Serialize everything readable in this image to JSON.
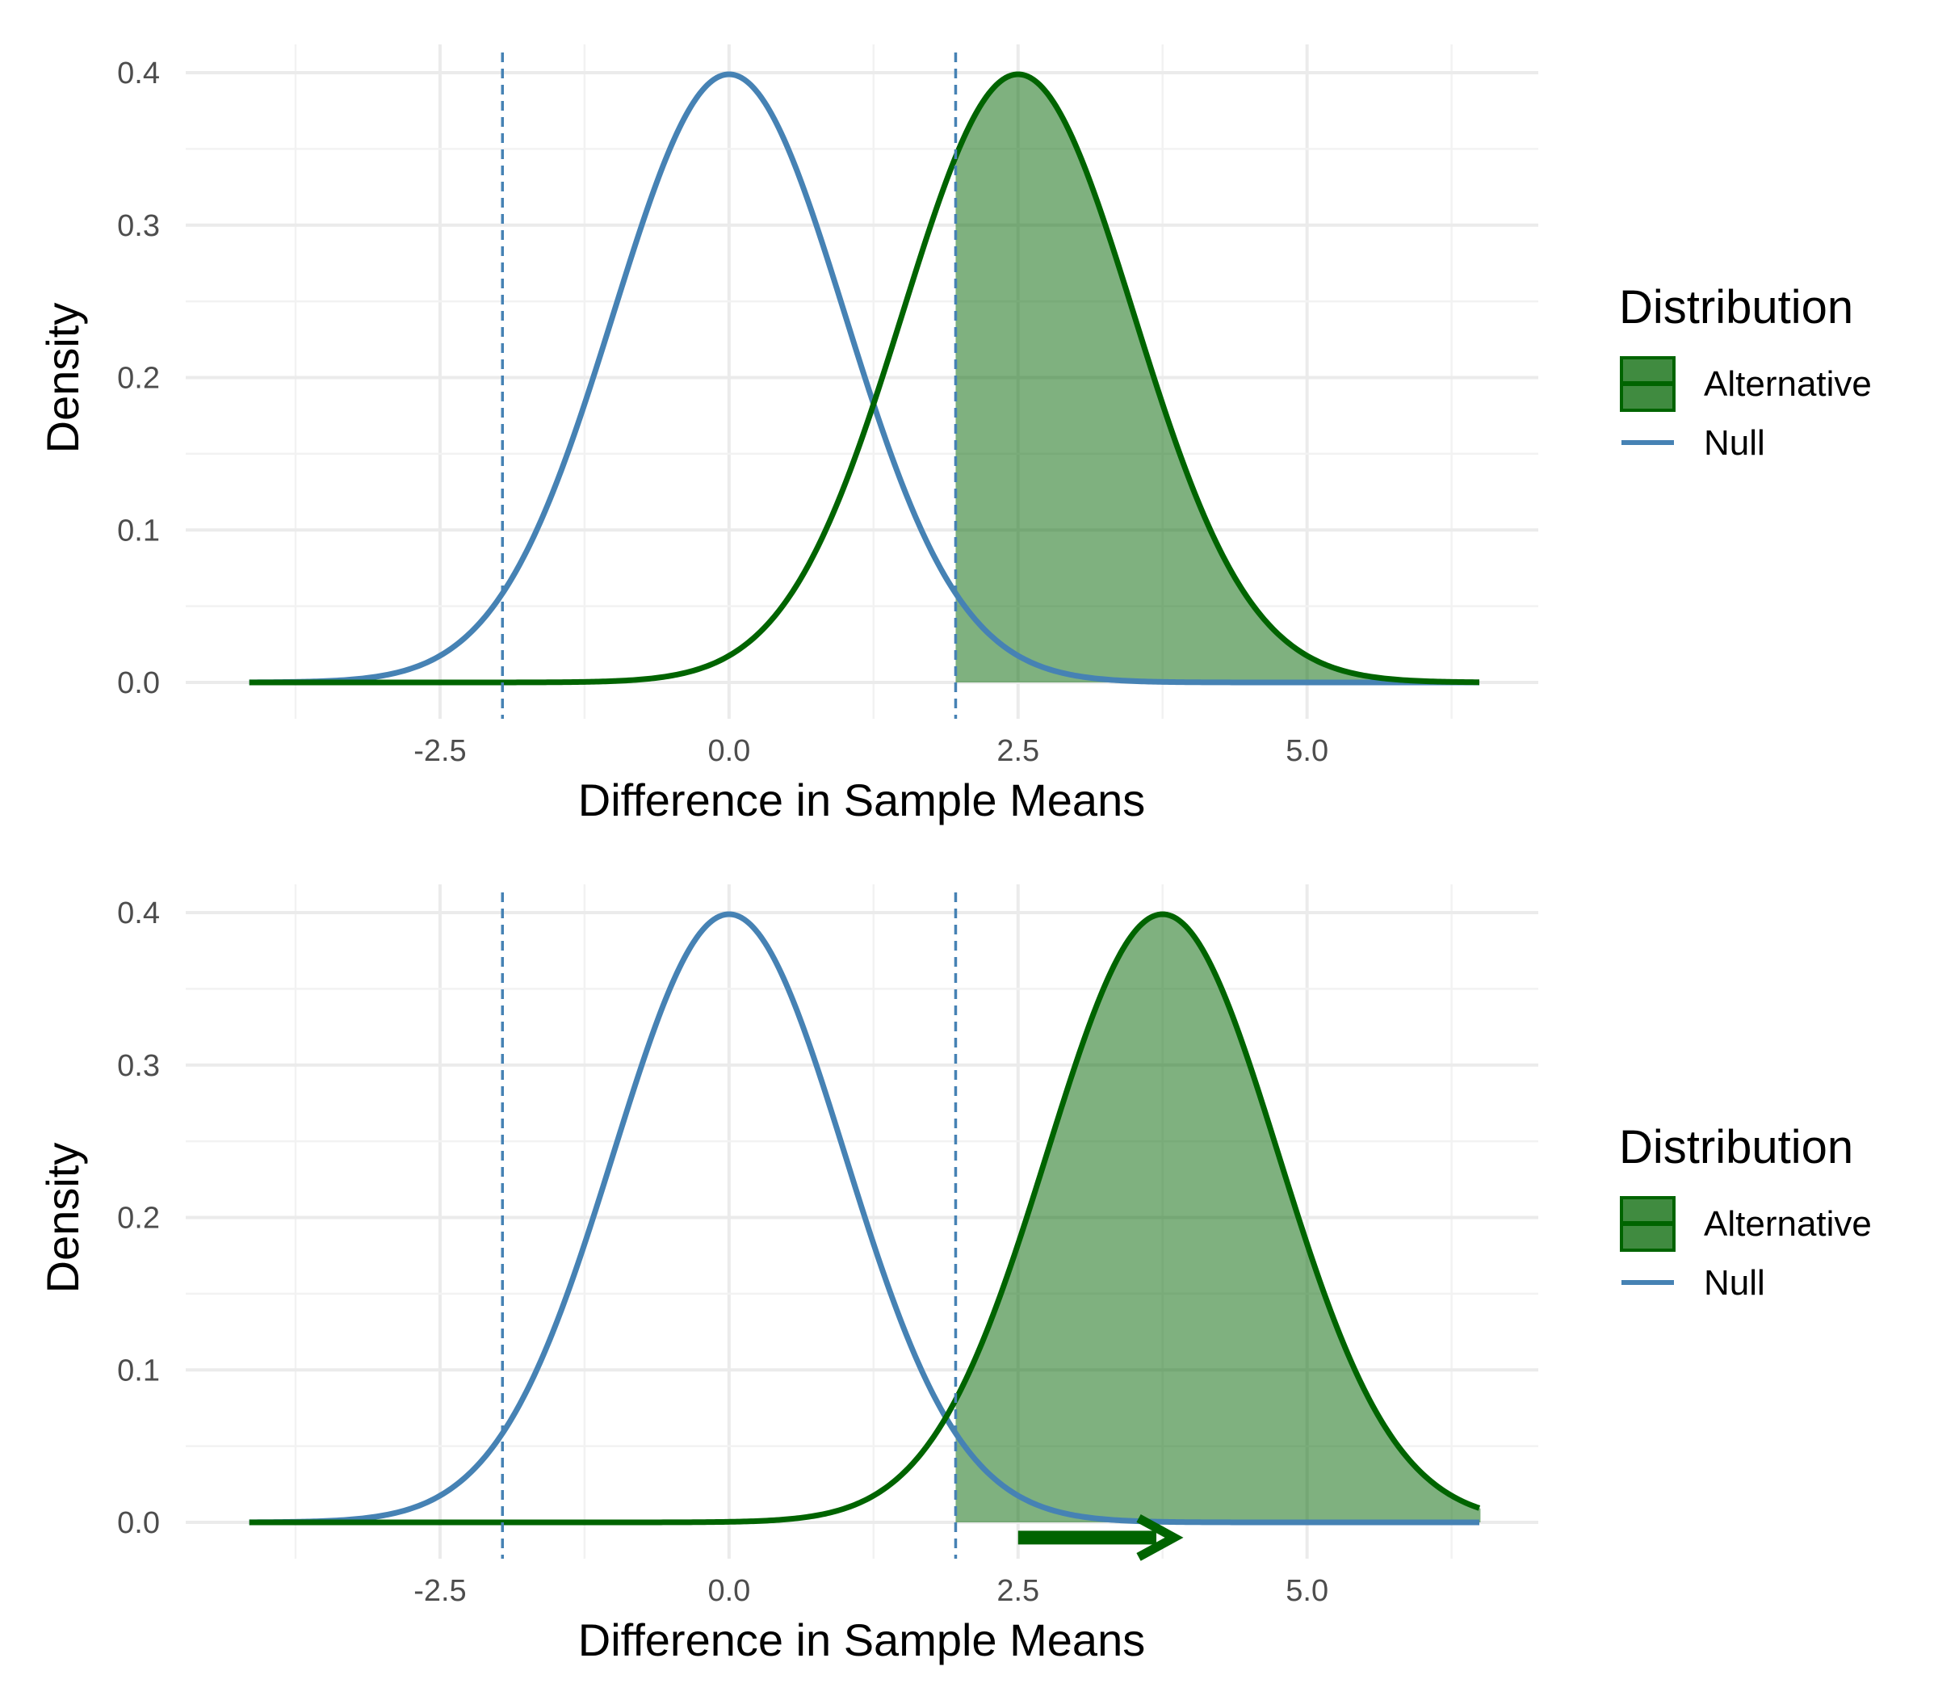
{
  "colors": {
    "null": "#4682b4",
    "alternative": "#006400",
    "fill": "#006400",
    "grid_major": "#ebebeb",
    "grid_minor": "#f2f2f2",
    "tick_text": "#4d4d4d"
  },
  "chart_data": [
    {
      "type": "line",
      "xlabel": "Difference in Sample Means",
      "ylabel": "Density",
      "xlim": [
        -4.15,
        6.5
      ],
      "ylim": [
        0,
        0.4
      ],
      "x_ticks": [
        -2.5,
        0.0,
        2.5,
        5.0
      ],
      "x_tick_labels": [
        "-2.5",
        "0.0",
        "2.5",
        "5.0"
      ],
      "y_ticks": [
        0.0,
        0.1,
        0.2,
        0.3,
        0.4
      ],
      "y_tick_labels": [
        "0.0",
        "0.1",
        "0.2",
        "0.3",
        "0.4"
      ],
      "grid": true,
      "legend": {
        "title": "Distribution",
        "position": "right",
        "entries": [
          "Alternative",
          "Null"
        ]
      },
      "series": [
        {
          "name": "Null",
          "distribution": "normal",
          "mean": 0.0,
          "sd": 1.0,
          "color": "#4682b4"
        },
        {
          "name": "Alternative",
          "distribution": "normal",
          "mean": 2.5,
          "sd": 1.0,
          "color": "#006400"
        }
      ],
      "critical_values": [
        -1.96,
        1.96
      ],
      "shaded_region": {
        "series": "Alternative",
        "from": 1.96,
        "to": 6.5
      },
      "arrow": null
    },
    {
      "type": "line",
      "xlabel": "Difference in Sample Means",
      "ylabel": "Density",
      "xlim": [
        -4.15,
        6.5
      ],
      "ylim": [
        0,
        0.4
      ],
      "x_ticks": [
        -2.5,
        0.0,
        2.5,
        5.0
      ],
      "x_tick_labels": [
        "-2.5",
        "0.0",
        "2.5",
        "5.0"
      ],
      "y_ticks": [
        0.0,
        0.1,
        0.2,
        0.3,
        0.4
      ],
      "y_tick_labels": [
        "0.0",
        "0.1",
        "0.2",
        "0.3",
        "0.4"
      ],
      "grid": true,
      "legend": {
        "title": "Distribution",
        "position": "right",
        "entries": [
          "Alternative",
          "Null"
        ]
      },
      "series": [
        {
          "name": "Null",
          "distribution": "normal",
          "mean": 0.0,
          "sd": 1.0,
          "color": "#4682b4"
        },
        {
          "name": "Alternative",
          "distribution": "normal",
          "mean": 3.75,
          "sd": 1.0,
          "color": "#006400"
        }
      ],
      "critical_values": [
        -1.96,
        1.96
      ],
      "shaded_region": {
        "series": "Alternative",
        "from": 1.96,
        "to": 6.5
      },
      "arrow": {
        "from": 2.5,
        "to": 3.85,
        "y": -0.01
      }
    }
  ]
}
